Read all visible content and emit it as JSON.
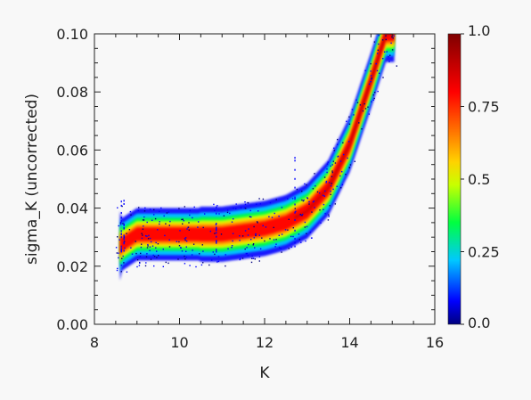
{
  "chart_data": {
    "type": "heatmap",
    "xlabel": "K",
    "ylabel": "sigma_K (uncorrected)",
    "xlim": [
      8,
      16
    ],
    "ylim": [
      0.0,
      0.1
    ],
    "xticks": [
      "8",
      "10",
      "12",
      "14",
      "16"
    ],
    "yticks": [
      "0.00",
      "0.02",
      "0.04",
      "0.06",
      "0.08",
      "0.10"
    ],
    "grid": false,
    "colorbar": {
      "ticks": [
        "1.0",
        "0.75",
        "0.5",
        "0.25",
        "0.0"
      ],
      "tick_values": [
        1.0,
        0.75,
        0.5,
        0.25,
        0.0
      ],
      "colormap": "rainbow (blue-green-yellow-red-darkred)",
      "range": [
        0.0,
        1.0
      ]
    },
    "density_ridge": [
      {
        "x": 8.6,
        "y": 0.027
      },
      {
        "x": 9.0,
        "y": 0.031
      },
      {
        "x": 10.0,
        "y": 0.031
      },
      {
        "x": 11.0,
        "y": 0.031
      },
      {
        "x": 12.0,
        "y": 0.033
      },
      {
        "x": 12.5,
        "y": 0.035
      },
      {
        "x": 13.0,
        "y": 0.039
      },
      {
        "x": 13.5,
        "y": 0.047
      },
      {
        "x": 14.0,
        "y": 0.062
      },
      {
        "x": 14.5,
        "y": 0.084
      },
      {
        "x": 14.85,
        "y": 0.1
      }
    ],
    "colors": {
      "colormap_stops": [
        "#00007f",
        "#0000ff",
        "#00c8ff",
        "#00ff40",
        "#c8ff00",
        "#ffd200",
        "#ff7800",
        "#ff0000",
        "#7f0000"
      ]
    }
  }
}
